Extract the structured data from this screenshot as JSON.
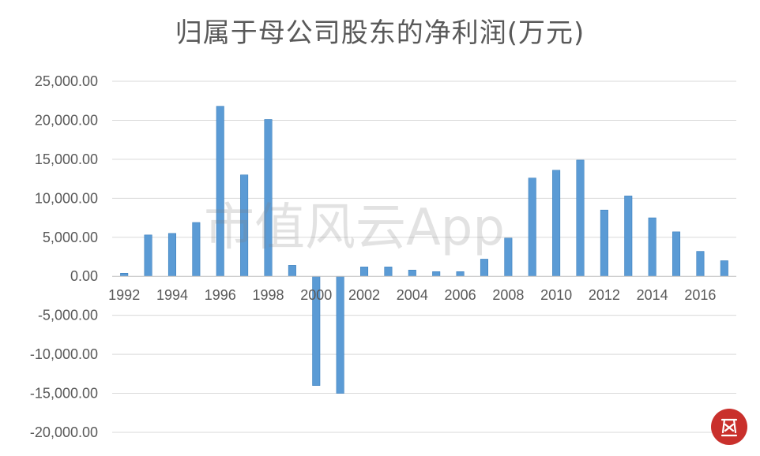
{
  "chart_data": {
    "type": "bar",
    "title": "归属于母公司股东的净利润(万元)",
    "xlabel": "",
    "ylabel": "",
    "ylim": [
      -20000,
      25000
    ],
    "yticks": [
      25000,
      20000,
      15000,
      10000,
      5000,
      0,
      -5000,
      -10000,
      -15000,
      -20000
    ],
    "ytick_labels": [
      "25,000.00",
      "20,000.00",
      "15,000.00",
      "10,000.00",
      "5,000.00",
      "0.00",
      "-5,000.00",
      "-10,000.00",
      "-15,000.00",
      "-20,000.00"
    ],
    "categories": [
      "1992",
      "1993",
      "1994",
      "1995",
      "1996",
      "1997",
      "1998",
      "1999",
      "2000",
      "2001",
      "2002",
      "2003",
      "2004",
      "2005",
      "2006",
      "2007",
      "2008",
      "2009",
      "2010",
      "2011",
      "2012",
      "2013",
      "2014",
      "2015",
      "2016",
      "2017"
    ],
    "xtick_labels": [
      "1992",
      "",
      "1994",
      "",
      "1996",
      "",
      "1998",
      "",
      "2000",
      "",
      "2002",
      "",
      "2004",
      "",
      "2006",
      "",
      "2008",
      "",
      "2010",
      "",
      "2012",
      "",
      "2014",
      "",
      "2016",
      ""
    ],
    "values": [
      400,
      5300,
      5500,
      6900,
      21800,
      13000,
      20100,
      1400,
      -14000,
      -15000,
      1200,
      1200,
      800,
      600,
      600,
      2200,
      4900,
      12600,
      13600,
      14900,
      8500,
      10300,
      7500,
      5700,
      3200,
      2000
    ],
    "grid": true,
    "legend": false,
    "bar_color": "#5b9bd5"
  },
  "watermark": {
    "text": "市值风云App",
    "color": "#7f7f7f"
  },
  "seal": {
    "color": "#c9302c"
  }
}
